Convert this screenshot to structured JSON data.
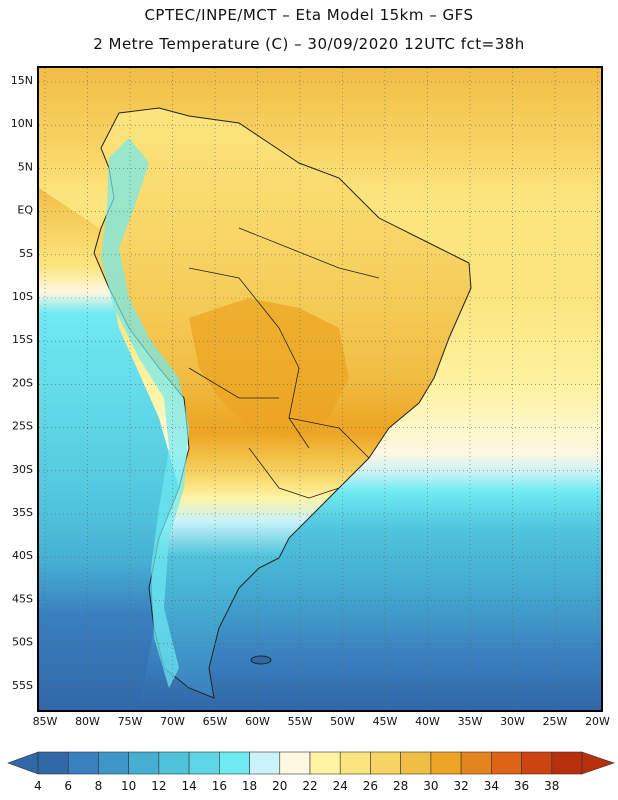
{
  "title_line1": "CPTEC/INPE/MCT –  Eta Model 15km – GFS",
  "title_line2": "2 Metre Temperature (C) – 30/09/2020 12UTC fct=38h",
  "map": {
    "lat_labels": [
      "15N",
      "10N",
      "5N",
      "EQ",
      "5S",
      "10S",
      "15S",
      "20S",
      "25S",
      "30S",
      "35S",
      "40S",
      "45S",
      "50S",
      "55S"
    ],
    "lon_labels": [
      "85W",
      "80W",
      "75W",
      "70W",
      "65W",
      "60W",
      "55W",
      "50W",
      "45W",
      "40W",
      "35W",
      "30W",
      "25W",
      "20W"
    ],
    "grid": "dotted"
  },
  "legend": {
    "values": [
      "4",
      "6",
      "8",
      "10",
      "12",
      "14",
      "16",
      "18",
      "20",
      "22",
      "24",
      "26",
      "28",
      "30",
      "32",
      "34",
      "36",
      "38"
    ],
    "colors": [
      "#3068a8",
      "#3a7fbf",
      "#3f96c8",
      "#45aed2",
      "#50c3dc",
      "#5fd6e6",
      "#6fe9f2",
      "#c9f3f8",
      "#fdf8e2",
      "#fdf3a3",
      "#fbe57e",
      "#f7d363",
      "#f1be45",
      "#eca422",
      "#e4841c",
      "#de6314",
      "#cc4410",
      "#b82f0c"
    ]
  }
}
